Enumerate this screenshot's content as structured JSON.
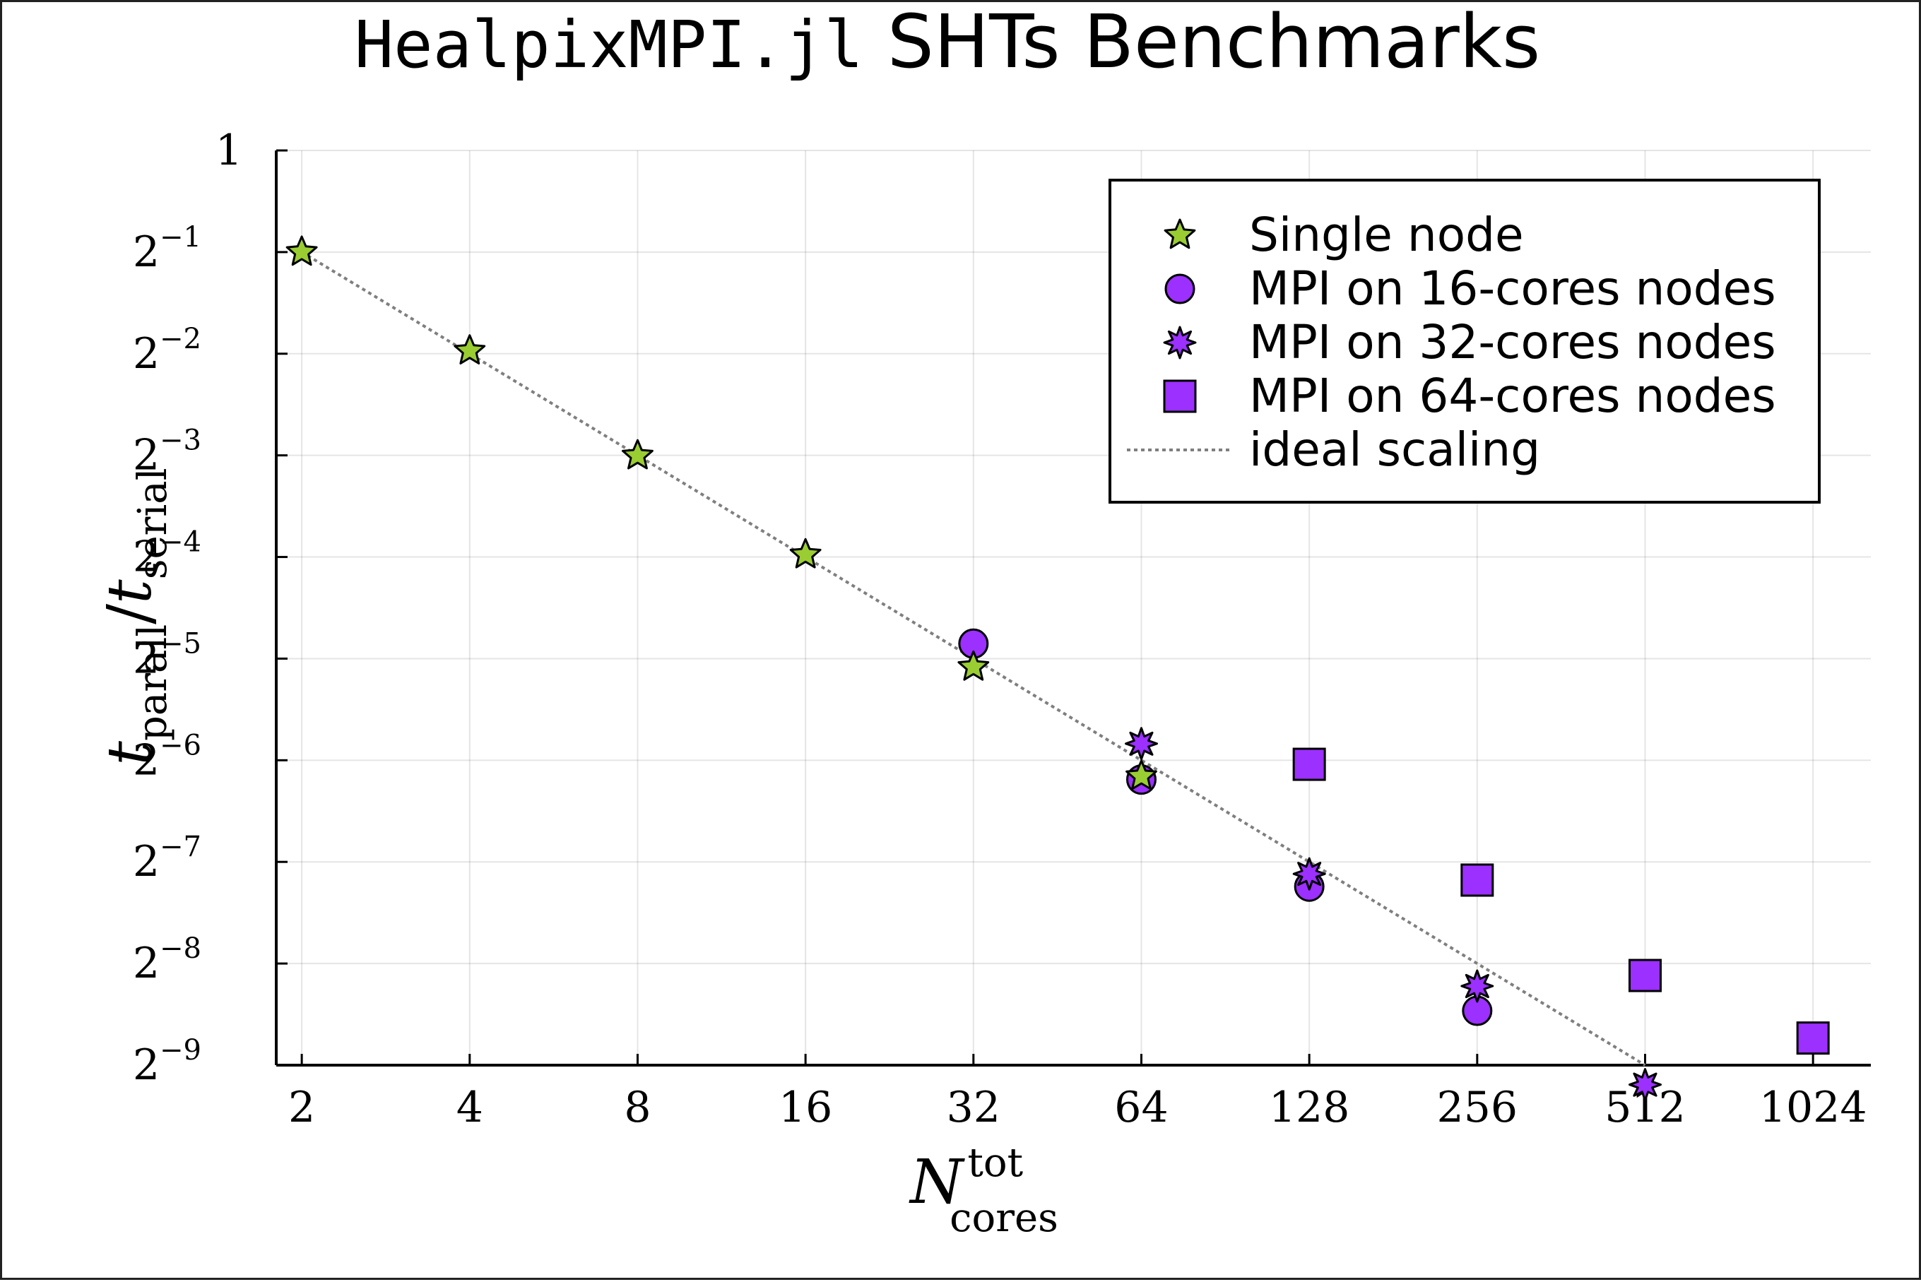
{
  "chart_data": {
    "type": "scatter",
    "title_code": "HealpixMPI.jl",
    "title_text": "SHTs Benchmarks",
    "ylabel": {
      "main": "t",
      "sub1": "parall",
      "sep": "/",
      "main2": "t",
      "sub2": "serial"
    },
    "xlabel": {
      "main": "N",
      "sup": "tot",
      "sub": "cores"
    },
    "x_scale": "log2",
    "y_scale": "log2",
    "xlim": [
      1.8,
      1300
    ],
    "ylim": [
      0.001953125,
      1
    ],
    "x_ticks": [
      {
        "value": 2,
        "label": "2"
      },
      {
        "value": 4,
        "label": "4"
      },
      {
        "value": 8,
        "label": "8"
      },
      {
        "value": 16,
        "label": "16"
      },
      {
        "value": 32,
        "label": "32"
      },
      {
        "value": 64,
        "label": "64"
      },
      {
        "value": 128,
        "label": "128"
      },
      {
        "value": 256,
        "label": "256"
      },
      {
        "value": 512,
        "label": "512"
      },
      {
        "value": 1024,
        "label": "1024"
      }
    ],
    "y_ticks": [
      {
        "value": 1,
        "base": "1",
        "exp": ""
      },
      {
        "value": 0.5,
        "base": "2",
        "exp": "−1"
      },
      {
        "value": 0.25,
        "base": "2",
        "exp": "−2"
      },
      {
        "value": 0.125,
        "base": "2",
        "exp": "−3"
      },
      {
        "value": 0.0625,
        "base": "2",
        "exp": "−4"
      },
      {
        "value": 0.03125,
        "base": "2",
        "exp": "−5"
      },
      {
        "value": 0.015625,
        "base": "2",
        "exp": "−6"
      },
      {
        "value": 0.0078125,
        "base": "2",
        "exp": "−7"
      },
      {
        "value": 0.00390625,
        "base": "2",
        "exp": "−8"
      },
      {
        "value": 0.001953125,
        "base": "2",
        "exp": "−9"
      }
    ],
    "grid": true,
    "legend_position": "top-right",
    "series": [
      {
        "name": "Single node",
        "marker": "star5",
        "color": "#9acd32",
        "points": [
          [
            2,
            0.5
          ],
          [
            4,
            0.2549
          ],
          [
            8,
            0.1247
          ],
          [
            16,
            0.0635
          ],
          [
            32,
            0.0295
          ],
          [
            64,
            0.014
          ]
        ]
      },
      {
        "name": "MPI on 16-cores nodes",
        "marker": "circle",
        "color": "#9b30ff",
        "points": [
          [
            32,
            0.0346
          ],
          [
            64,
            0.0137
          ],
          [
            128,
            0.0066
          ],
          [
            256,
            0.00283
          ]
        ]
      },
      {
        "name": "MPI on 32-cores nodes",
        "marker": "star8",
        "color": "#9b30ff",
        "points": [
          [
            64,
            0.0175
          ],
          [
            128,
            0.0072
          ],
          [
            256,
            0.00335
          ],
          [
            512,
            0.00171
          ]
        ]
      },
      {
        "name": "MPI on 64-cores nodes",
        "marker": "square",
        "color": "#9b30ff",
        "points": [
          [
            128,
            0.0152
          ],
          [
            256,
            0.0069
          ],
          [
            512,
            0.0036
          ],
          [
            1024,
            0.00235
          ]
        ]
      },
      {
        "name": "ideal scaling",
        "marker": "dotted-line",
        "color": "#7f7f7f",
        "points": [
          [
            2,
            0.5
          ],
          [
            512,
            0.001953125
          ]
        ]
      }
    ]
  }
}
